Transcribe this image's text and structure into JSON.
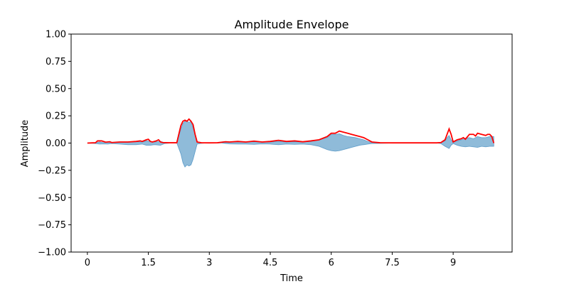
{
  "chart_data": {
    "type": "area",
    "title": "Amplitude Envelope",
    "xlabel": "Time",
    "ylabel": "Amplitude",
    "xlim": [
      -0.4,
      10.45
    ],
    "ylim": [
      -1.0,
      1.0
    ],
    "x_ticks": [
      0,
      1.5,
      3,
      4.5,
      6,
      7.5,
      9
    ],
    "x_tick_labels": [
      "0",
      "1.5",
      "3",
      "4.5",
      "6",
      "7.5",
      "9"
    ],
    "y_ticks": [
      -1.0,
      -0.75,
      -0.5,
      -0.25,
      0.0,
      0.25,
      0.5,
      0.75,
      1.0
    ],
    "y_tick_labels": [
      "−1.00",
      "−0.75",
      "−0.50",
      "−0.25",
      "0.00",
      "0.25",
      "0.50",
      "0.75",
      "1.00"
    ],
    "grid": false,
    "colors": {
      "waveform": "#1f77b4",
      "envelope": "#ff0000"
    },
    "series": [
      {
        "role": "waveform",
        "x": [
          0,
          0.2,
          0.3,
          0.4,
          0.5,
          0.6,
          0.8,
          1.0,
          1.2,
          1.35,
          1.45,
          1.55,
          1.65,
          1.8,
          1.9,
          2.05,
          2.2,
          2.3,
          2.35,
          2.4,
          2.45,
          2.5,
          2.55,
          2.6,
          2.7,
          2.8,
          2.9,
          3.1,
          3.3,
          3.5,
          3.7,
          3.9,
          4.1,
          4.3,
          4.5,
          4.7,
          4.9,
          5.1,
          5.3,
          5.5,
          5.7,
          5.9,
          6.0,
          6.1,
          6.2,
          6.3,
          6.4,
          6.5,
          6.6,
          6.7,
          6.8,
          6.9,
          7.0,
          7.2,
          7.5,
          7.8,
          8.1,
          8.4,
          8.6,
          8.7,
          8.8,
          8.85,
          8.9,
          8.95,
          9.0,
          9.1,
          9.2,
          9.3,
          9.4,
          9.5,
          9.6,
          9.7,
          9.8,
          9.9,
          10.0
        ],
        "upper": [
          0,
          0.005,
          0.01,
          0.005,
          0.01,
          0.005,
          0.01,
          0.01,
          0.012,
          0.01,
          0.02,
          0.015,
          0.01,
          0.015,
          0.005,
          0,
          0,
          0.13,
          0.18,
          0.2,
          0.2,
          0.19,
          0.2,
          0.14,
          0.01,
          0.003,
          0,
          0,
          0,
          0.008,
          0.01,
          0.01,
          0.012,
          0.008,
          0.01,
          0.015,
          0.01,
          0.012,
          0.01,
          0.015,
          0.03,
          0.05,
          0.08,
          0.08,
          0.085,
          0.07,
          0.06,
          0.055,
          0.05,
          0.04,
          0.03,
          0.015,
          0.005,
          0.003,
          0,
          0,
          0,
          0,
          0,
          0.005,
          0.02,
          0.05,
          0.07,
          0.03,
          0.005,
          0.02,
          0.03,
          0.045,
          0.05,
          0.04,
          0.06,
          0.05,
          0.05,
          0.06,
          0.06
        ],
        "lower": [
          0,
          -0.005,
          -0.01,
          -0.008,
          -0.01,
          -0.005,
          -0.01,
          -0.015,
          -0.015,
          -0.01,
          -0.02,
          -0.02,
          -0.015,
          -0.02,
          -0.005,
          0,
          0,
          -0.1,
          -0.18,
          -0.22,
          -0.2,
          -0.21,
          -0.2,
          -0.15,
          -0.01,
          -0.003,
          0,
          0,
          0,
          -0.008,
          -0.01,
          -0.01,
          -0.012,
          -0.008,
          -0.01,
          -0.015,
          -0.01,
          -0.012,
          -0.01,
          -0.015,
          -0.03,
          -0.06,
          -0.07,
          -0.075,
          -0.07,
          -0.06,
          -0.05,
          -0.04,
          -0.03,
          -0.02,
          -0.015,
          -0.01,
          -0.005,
          -0.003,
          0,
          0,
          0,
          0,
          0,
          -0.005,
          -0.03,
          -0.04,
          -0.05,
          -0.02,
          -0.005,
          -0.02,
          -0.03,
          -0.035,
          -0.03,
          -0.035,
          -0.04,
          -0.03,
          -0.035,
          -0.03,
          -0.03
        ]
      },
      {
        "role": "envelope",
        "x": [
          0,
          0.2,
          0.25,
          0.35,
          0.45,
          0.55,
          0.6,
          0.8,
          1.0,
          1.2,
          1.3,
          1.35,
          1.45,
          1.5,
          1.55,
          1.6,
          1.7,
          1.75,
          1.8,
          1.85,
          2.0,
          2.2,
          2.3,
          2.35,
          2.4,
          2.45,
          2.5,
          2.55,
          2.6,
          2.65,
          2.7,
          2.8,
          3.0,
          3.2,
          3.4,
          3.5,
          3.7,
          3.9,
          4.1,
          4.3,
          4.5,
          4.7,
          4.9,
          5.1,
          5.3,
          5.5,
          5.7,
          5.9,
          6.0,
          6.1,
          6.2,
          6.3,
          6.4,
          6.5,
          6.6,
          6.7,
          6.8,
          6.9,
          7.0,
          7.2,
          7.5,
          7.8,
          8.1,
          8.4,
          8.6,
          8.7,
          8.8,
          8.85,
          8.9,
          8.95,
          9.0,
          9.1,
          9.2,
          9.25,
          9.3,
          9.4,
          9.5,
          9.55,
          9.6,
          9.7,
          9.8,
          9.85,
          9.9,
          9.95,
          10.0
        ],
        "values": [
          0,
          0.003,
          0.02,
          0.02,
          0.008,
          0.012,
          0.005,
          0.01,
          0.01,
          0.015,
          0.02,
          0.015,
          0.03,
          0.035,
          0.015,
          0.01,
          0.02,
          0.03,
          0.01,
          0.005,
          0.003,
          0.003,
          0.16,
          0.2,
          0.21,
          0.2,
          0.22,
          0.2,
          0.17,
          0.08,
          0.01,
          0.003,
          0.002,
          0.003,
          0.012,
          0.01,
          0.015,
          0.01,
          0.018,
          0.01,
          0.015,
          0.025,
          0.015,
          0.02,
          0.012,
          0.02,
          0.03,
          0.06,
          0.09,
          0.09,
          0.11,
          0.1,
          0.09,
          0.08,
          0.07,
          0.06,
          0.05,
          0.03,
          0.01,
          0.003,
          0.002,
          0.002,
          0.002,
          0.002,
          0.002,
          0.005,
          0.03,
          0.08,
          0.13,
          0.08,
          0.01,
          0.03,
          0.04,
          0.05,
          0.035,
          0.08,
          0.08,
          0.065,
          0.09,
          0.08,
          0.07,
          0.08,
          0.08,
          0.06,
          0.0
        ]
      }
    ]
  }
}
